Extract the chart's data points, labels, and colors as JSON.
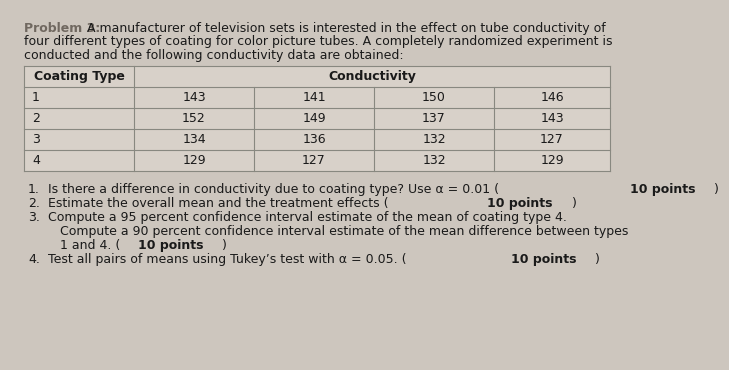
{
  "bg_color": "#cdc6be",
  "text_color": "#1a1a1a",
  "title_color": "#706860",
  "table_bg": "#d8d1c9",
  "table_line_color": "#888880",
  "title_text": "Problem 3:",
  "intro_line1": "A manufacturer of television sets is interested in the effect on tube conductivity of",
  "intro_line2": "four different types of coating for color picture tubes. A completely randomized experiment is",
  "intro_line3": "conducted and the following conductivity data are obtained:",
  "col1_header": "Coating Type",
  "col2_header": "Conductivity",
  "table_rows": [
    {
      "type": "1",
      "values": [
        143,
        141,
        150,
        146
      ]
    },
    {
      "type": "2",
      "values": [
        152,
        149,
        137,
        143
      ]
    },
    {
      "type": "3",
      "values": [
        134,
        136,
        132,
        127
      ]
    },
    {
      "type": "4",
      "values": [
        129,
        127,
        132,
        129
      ]
    }
  ],
  "q1_pre": "Is there a difference in conductivity due to coating type? Use α = 0.01 (",
  "q1_bold": "10 points",
  "q1_post": ")",
  "q2_pre": "Estimate the overall mean and the treatment effects (",
  "q2_bold": "10 points",
  "q2_post": ")",
  "q3_line1": "Compute a 95 percent confidence interval estimate of the mean of coating type 4.",
  "q3_line2": "Compute a 90 percent confidence interval estimate of the mean difference between types",
  "q3_line3_pre": "1 and 4. (",
  "q3_line3_bold": "10 points",
  "q3_line3_post": ")",
  "q4_pre": "Test all pairs of means using Tukey’s test with α = 0.05. (",
  "q4_bold": "10 points",
  "q4_post": ")",
  "fs_intro": 9.0,
  "fs_table": 9.0,
  "fs_q": 9.0
}
